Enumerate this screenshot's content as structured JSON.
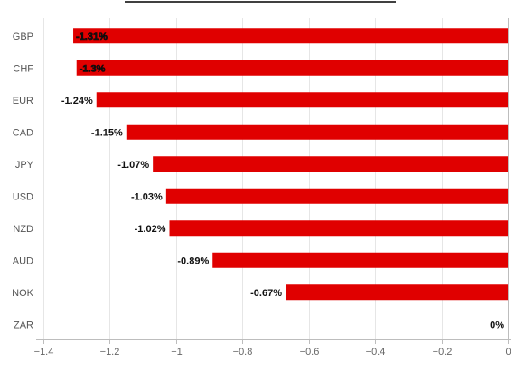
{
  "chart_data": {
    "type": "bar",
    "orientation": "horizontal",
    "categories": [
      "GBP",
      "CHF",
      "EUR",
      "CAD",
      "JPY",
      "USD",
      "NZD",
      "AUD",
      "NOK",
      "ZAR"
    ],
    "values": [
      -1.31,
      -1.3,
      -1.24,
      -1.15,
      -1.07,
      -1.03,
      -1.02,
      -0.89,
      -0.67,
      0
    ],
    "data_labels": [
      "-1.31%",
      "-1.3%",
      "-1.24%",
      "-1.15%",
      "-1.07%",
      "-1.03%",
      "-1.02%",
      "-0.89%",
      "-0.67%",
      "0%"
    ],
    "xlim": [
      -1.4,
      0
    ],
    "xticks": [
      -1.4,
      -1.2,
      -1,
      -0.8,
      -0.6,
      -0.4,
      -0.2,
      0
    ],
    "xtick_labels": [
      "−1.4",
      "−1.2",
      "−1",
      "−0.8",
      "−0.6",
      "−0.4",
      "−0.2",
      "0"
    ],
    "title": "",
    "xlabel": "",
    "ylabel": "",
    "grid": true,
    "bar_color": "#e00000"
  }
}
